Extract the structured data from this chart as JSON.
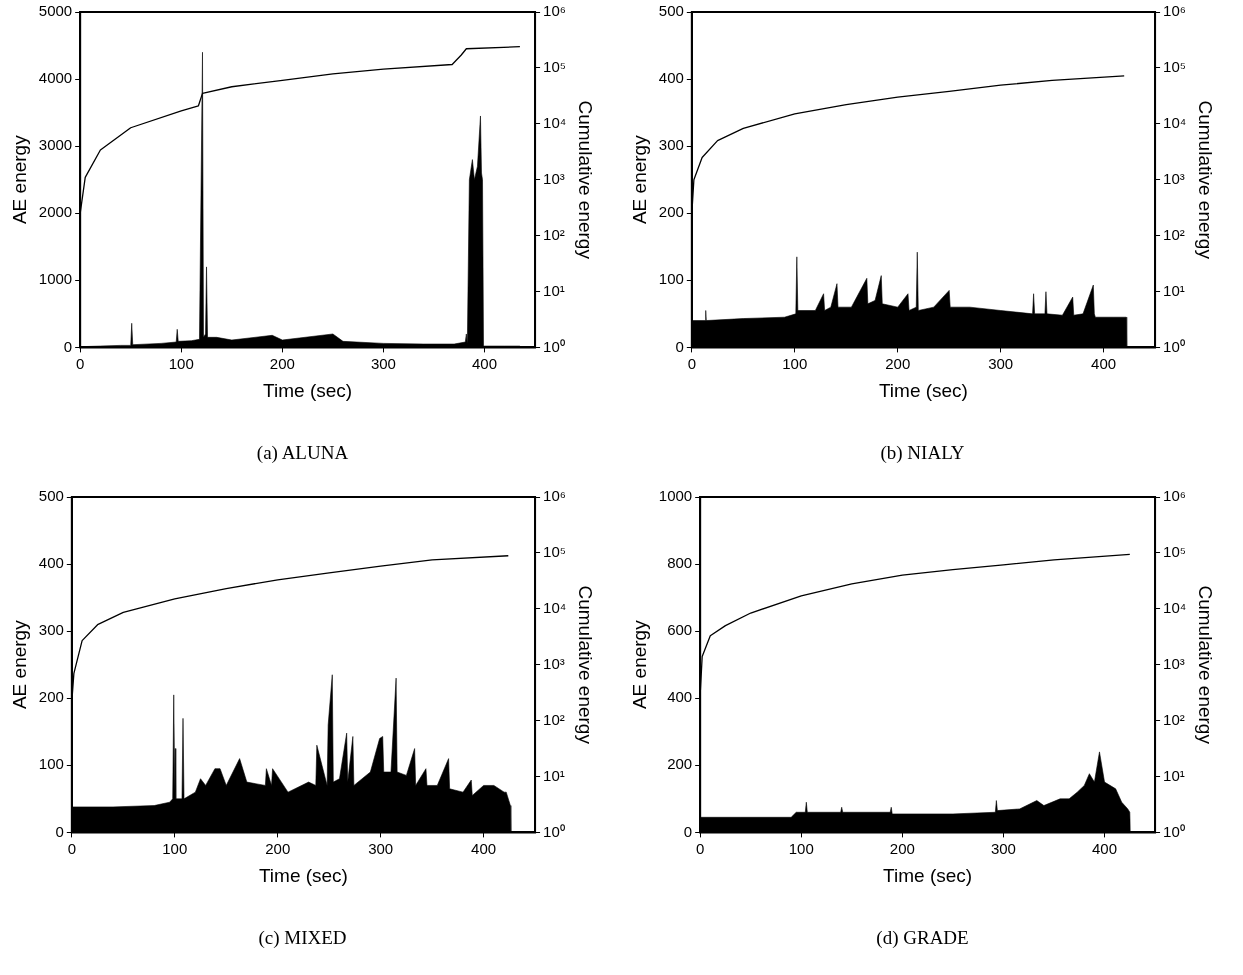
{
  "chart_data": [
    {
      "type": "area",
      "title": "(a) ALUNA",
      "xlabel": "Time (sec)",
      "ylabel": "AE energy",
      "y2label": "Cumulative energy",
      "xlim": [
        0,
        450
      ],
      "xticks": [
        0,
        100,
        200,
        300,
        400
      ],
      "ylim": [
        0,
        5000
      ],
      "yticks": [
        0,
        1000,
        2000,
        3000,
        4000,
        5000
      ],
      "y2lim": [
        1,
        1000000
      ],
      "y2ticks": [
        {
          "value": 1,
          "label": "10⁰"
        },
        {
          "value": 10,
          "label": "10¹"
        },
        {
          "value": 100,
          "label": "10²"
        },
        {
          "value": 1000,
          "label": "10³"
        },
        {
          "value": 10000,
          "label": "10⁴"
        },
        {
          "value": 100000,
          "label": "10⁵"
        },
        {
          "value": 1000000,
          "label": "10⁶"
        }
      ],
      "log": "y2",
      "grid": false,
      "marker": "none",
      "series": [
        {
          "type": "area",
          "color": "#000000",
          "x": [
            0,
            20,
            40,
            50,
            51,
            52,
            80,
            95,
            96,
            97,
            110,
            118,
            121,
            122,
            124,
            125,
            126,
            135,
            150,
            190,
            200,
            250,
            260,
            300,
            340,
            370,
            381,
            382,
            383,
            385,
            388,
            390,
            393,
            396,
            397,
            398,
            399,
            420,
            435
          ],
          "values": [
            10,
            20,
            30,
            30,
            360,
            40,
            60,
            80,
            270,
            90,
            100,
            120,
            4400,
            150,
            200,
            1200,
            150,
            150,
            110,
            180,
            110,
            200,
            90,
            60,
            50,
            50,
            80,
            200,
            60,
            2500,
            2800,
            2500,
            2700,
            3450,
            2600,
            2500,
            20,
            20,
            20
          ]
        },
        {
          "type": "line",
          "axis": "y2",
          "color": "#000000",
          "x": [
            0,
            5,
            20,
            50,
            100,
            117,
            121,
            150,
            200,
            250,
            300,
            368,
            377,
            382,
            435
          ],
          "values": [
            250,
            1100,
            3400,
            8500,
            17000,
            21000,
            35000,
            46000,
            60000,
            78000,
            95000,
            115000,
            170000,
            220000,
            240000
          ]
        }
      ]
    },
    {
      "type": "area",
      "title": "(b) NIALY",
      "xlabel": "Time (sec)",
      "ylabel": "AE energy",
      "y2label": "Cumulative energy",
      "xlim": [
        0,
        450
      ],
      "xticks": [
        0,
        100,
        200,
        300,
        400
      ],
      "ylim": [
        0,
        500
      ],
      "yticks": [
        0,
        100,
        200,
        300,
        400,
        500
      ],
      "y2lim": [
        1,
        1000000
      ],
      "y2ticks": [
        {
          "value": 1,
          "label": "10⁰"
        },
        {
          "value": 10,
          "label": "10¹"
        },
        {
          "value": 100,
          "label": "10²"
        },
        {
          "value": 1000,
          "label": "10³"
        },
        {
          "value": 10000,
          "label": "10⁴"
        },
        {
          "value": 100000,
          "label": "10⁵"
        },
        {
          "value": 1000000,
          "label": "10⁶"
        }
      ],
      "log": "y2",
      "grid": false,
      "marker": "none",
      "series": [
        {
          "type": "area",
          "color": "#000000",
          "x": [
            0,
            13,
            13.5,
            14,
            50,
            90,
            101,
            102,
            103,
            120,
            128,
            129,
            135,
            141,
            142,
            155,
            170,
            171,
            178,
            184,
            185,
            200,
            210,
            211,
            218,
            219,
            220,
            235,
            250,
            251,
            270,
            300,
            331,
            332,
            333,
            343,
            344,
            345,
            360,
            370,
            371,
            380,
            390,
            391,
            392,
            410,
            422,
            422.5
          ],
          "values": [
            40,
            40,
            55,
            40,
            43,
            45,
            50,
            135,
            55,
            55,
            80,
            55,
            60,
            95,
            60,
            60,
            103,
            65,
            70,
            107,
            65,
            60,
            80,
            55,
            60,
            142,
            55,
            60,
            85,
            60,
            60,
            55,
            50,
            80,
            50,
            50,
            83,
            50,
            48,
            75,
            48,
            50,
            93,
            50,
            45,
            45,
            45,
            0
          ]
        },
        {
          "type": "line",
          "axis": "y2",
          "color": "#000000",
          "x": [
            0,
            2,
            10,
            25,
            50,
            100,
            150,
            200,
            250,
            300,
            350,
            420
          ],
          "values": [
            250,
            1000,
            2500,
            5000,
            8300,
            15000,
            22000,
            30000,
            38000,
            49000,
            60000,
            72000
          ]
        }
      ]
    },
    {
      "type": "area",
      "title": "(c) MIXED",
      "xlabel": "Time (sec)",
      "ylabel": "AE energy",
      "y2label": "Cumulative energy",
      "xlim": [
        0,
        450
      ],
      "xticks": [
        0,
        100,
        200,
        300,
        400
      ],
      "ylim": [
        0,
        500
      ],
      "yticks": [
        0,
        100,
        200,
        300,
        400,
        500
      ],
      "y2lim": [
        1,
        1000000
      ],
      "y2ticks": [
        {
          "value": 1,
          "label": "10⁰"
        },
        {
          "value": 10,
          "label": "10¹"
        },
        {
          "value": 100,
          "label": "10²"
        },
        {
          "value": 1000,
          "label": "10³"
        },
        {
          "value": 10000,
          "label": "10⁴"
        },
        {
          "value": 100000,
          "label": "10⁵"
        },
        {
          "value": 1000000,
          "label": "10⁶"
        }
      ],
      "log": "y2",
      "grid": false,
      "marker": "none",
      "series": [
        {
          "type": "area",
          "color": "#000000",
          "x": [
            0,
            40,
            80,
            95,
            98,
            99,
            100,
            100.5,
            101,
            107,
            108,
            109,
            120,
            125,
            130,
            139,
            144,
            150,
            163,
            170,
            188,
            189,
            194,
            195,
            210,
            230,
            237,
            238,
            248,
            249,
            253,
            254,
            260,
            267,
            268,
            273,
            274,
            290,
            299,
            302,
            303,
            310,
            315,
            316,
            325,
            333,
            334,
            344,
            345,
            355,
            366,
            367,
            380,
            388,
            389,
            400,
            410,
            420,
            422,
            426,
            426.5
          ],
          "values": [
            38,
            38,
            40,
            45,
            50,
            205,
            60,
            125,
            50,
            50,
            170,
            50,
            60,
            80,
            70,
            95,
            95,
            70,
            110,
            75,
            70,
            95,
            70,
            95,
            60,
            75,
            70,
            130,
            70,
            160,
            235,
            75,
            80,
            148,
            75,
            143,
            70,
            90,
            140,
            143,
            90,
            90,
            230,
            90,
            85,
            125,
            70,
            95,
            70,
            70,
            110,
            65,
            60,
            78,
            55,
            70,
            70,
            60,
            60,
            40,
            0
          ]
        },
        {
          "type": "line",
          "axis": "y2",
          "color": "#000000",
          "x": [
            0,
            2,
            10,
            25,
            50,
            100,
            150,
            200,
            250,
            300,
            350,
            424
          ],
          "values": [
            220,
            700,
            2700,
            5200,
            8600,
            15000,
            23000,
            33000,
            44000,
            58000,
            75000,
            89000
          ]
        }
      ]
    },
    {
      "type": "area",
      "title": "(d) GRADE",
      "xlabel": "Time (sec)",
      "ylabel": "AE energy",
      "y2label": "Cumulative energy",
      "xlim": [
        0,
        450
      ],
      "xticks": [
        0,
        100,
        200,
        300,
        400
      ],
      "ylim": [
        0,
        1000
      ],
      "yticks": [
        0,
        200,
        400,
        600,
        800,
        1000
      ],
      "y2lim": [
        1,
        1000000
      ],
      "y2ticks": [
        {
          "value": 1,
          "label": "10⁰"
        },
        {
          "value": 10,
          "label": "10¹"
        },
        {
          "value": 100,
          "label": "10²"
        },
        {
          "value": 1000,
          "label": "10³"
        },
        {
          "value": 10000,
          "label": "10⁴"
        },
        {
          "value": 100000,
          "label": "10⁵"
        },
        {
          "value": 1000000,
          "label": "10⁶"
        }
      ],
      "log": "y2",
      "grid": false,
      "marker": "none",
      "series": [
        {
          "type": "area",
          "color": "#000000",
          "x": [
            0,
            40,
            90,
            95,
            104,
            105,
            106,
            139,
            140,
            141,
            188,
            189,
            190,
            250,
            292,
            293,
            294,
            316,
            333,
            340,
            356,
            365,
            373,
            380,
            385,
            390,
            395,
            400,
            411,
            417,
            423,
            425,
            425.5
          ],
          "values": [
            45,
            45,
            45,
            60,
            60,
            90,
            60,
            60,
            75,
            60,
            60,
            75,
            55,
            55,
            60,
            95,
            65,
            70,
            95,
            80,
            100,
            100,
            120,
            140,
            175,
            150,
            240,
            150,
            130,
            90,
            70,
            60,
            0
          ]
        },
        {
          "type": "line",
          "axis": "y2",
          "color": "#000000",
          "x": [
            0,
            2,
            10,
            25,
            50,
            100,
            150,
            200,
            250,
            300,
            350,
            425
          ],
          "values": [
            290,
            1400,
            3300,
            5000,
            8400,
            17000,
            28000,
            40000,
            50000,
            61000,
            75000,
            94000
          ]
        }
      ]
    }
  ]
}
